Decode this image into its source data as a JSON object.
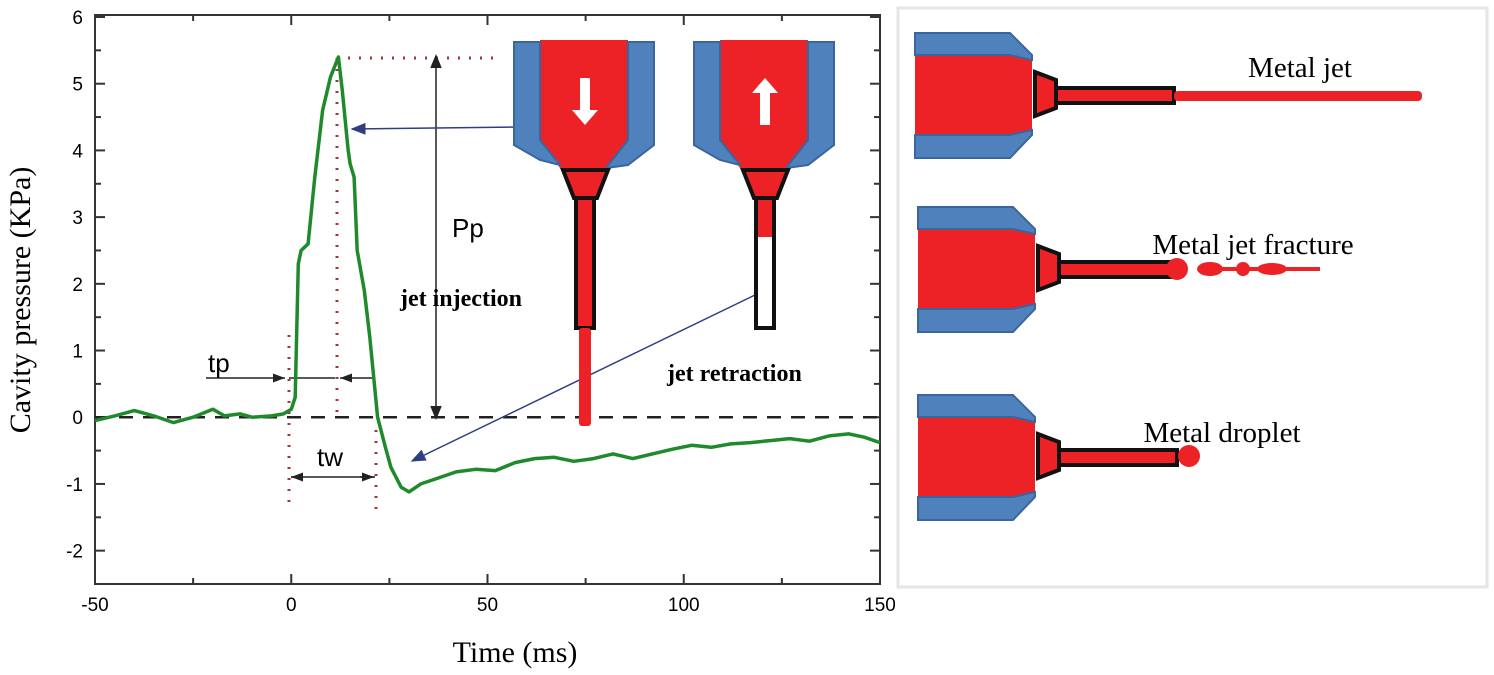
{
  "chart_data": {
    "type": "line",
    "xlabel": "Time (ms)",
    "ylabel": "Cavity pressure (KPa)",
    "xlim": [
      -50,
      150
    ],
    "ylim": [
      -2.5,
      6
    ],
    "xticks": [
      "-50",
      "0",
      "50",
      "100",
      "150"
    ],
    "yticks": [
      "-2",
      "-1",
      "0",
      "1",
      "2",
      "3",
      "4",
      "5",
      "6"
    ],
    "grid": false,
    "series": [
      {
        "color": "#1f8a2c",
        "x": [
          -50,
          -45,
          -40,
          -35,
          -30,
          -25,
          -20,
          -17,
          -13,
          -10,
          -5,
          -2,
          0,
          1,
          1.8,
          2.5,
          4.3,
          6,
          8,
          10,
          12,
          13,
          14,
          14.5,
          15,
          16,
          16.8,
          18.6,
          20,
          22,
          24,
          25.4,
          28,
          30,
          33,
          37,
          42,
          47,
          52,
          57,
          62,
          67,
          72,
          77,
          82,
          87,
          92,
          97,
          102,
          107,
          112,
          117,
          122,
          127,
          132,
          137,
          142,
          146,
          150
        ],
        "y": [
          -0.05,
          0.02,
          0.1,
          0.02,
          -0.08,
          0.0,
          0.12,
          0.02,
          0.05,
          0.0,
          0.02,
          0.05,
          0.12,
          0.3,
          2.3,
          2.5,
          2.6,
          3.6,
          4.6,
          5.1,
          5.4,
          4.9,
          4.3,
          4.0,
          3.8,
          3.6,
          2.5,
          1.9,
          1.2,
          0.0,
          -0.45,
          -0.75,
          -1.05,
          -1.12,
          -1.0,
          -0.92,
          -0.82,
          -0.78,
          -0.8,
          -0.68,
          -0.62,
          -0.6,
          -0.66,
          -0.62,
          -0.55,
          -0.62,
          -0.55,
          -0.48,
          -0.42,
          -0.45,
          -0.4,
          -0.38,
          -0.35,
          -0.32,
          -0.36,
          -0.28,
          -0.25,
          -0.3,
          -0.38
        ]
      }
    ],
    "zero_line": "dashed",
    "annotations": {
      "tp": "tp",
      "tw": "tw",
      "pp": "Pp",
      "jet_injection": "jet injection",
      "jet_retraction": "jet retraction"
    }
  },
  "panel": {
    "labels": [
      "Metal jet",
      "Metal jet fracture",
      "Metal droplet"
    ]
  },
  "colors": {
    "nozzle_body": "#ec2227",
    "nozzle_pad": "#4f81bd",
    "curve": "#1f8a2c",
    "arrow": "#2e3e80",
    "guide": "#9a3a3a"
  }
}
